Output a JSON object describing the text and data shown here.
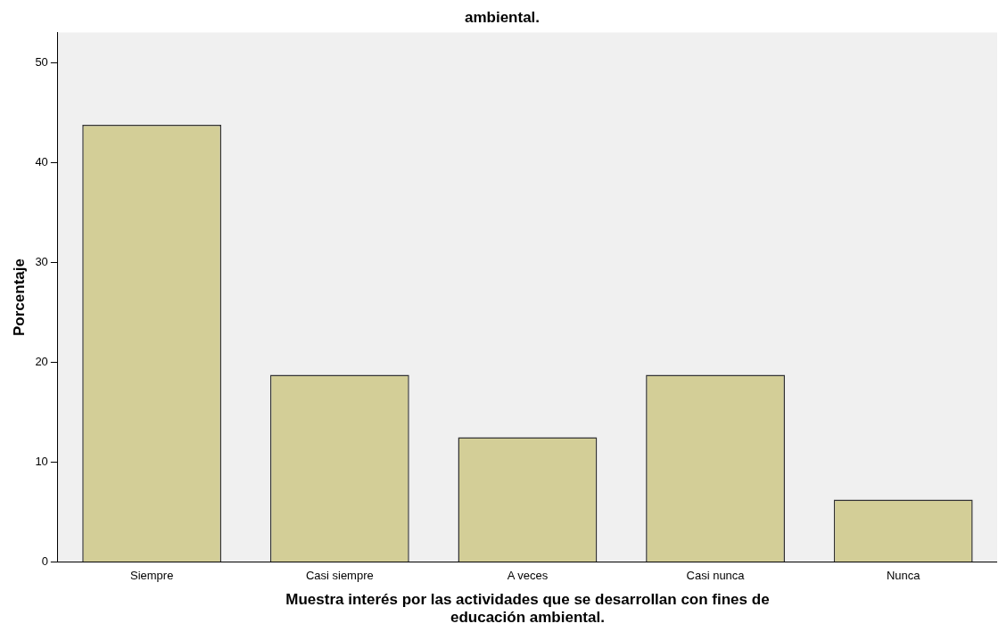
{
  "chart_data": {
    "type": "bar",
    "title": "ambiental.",
    "xlabel": "Muestra interés por las actividades que se desarrollan con fines de educación ambiental.",
    "ylabel": "Porcentaje",
    "categories": [
      "Siempre",
      "Casi siempre",
      "A veces",
      "Casi nunca",
      "Nunca"
    ],
    "values": [
      43.75,
      18.75,
      12.5,
      18.75,
      6.25
    ],
    "color": "#d3ce97",
    "ylim": [
      0,
      53
    ],
    "yticks": [
      0,
      10,
      20,
      30,
      40,
      50
    ],
    "grid": false,
    "legend": false
  }
}
